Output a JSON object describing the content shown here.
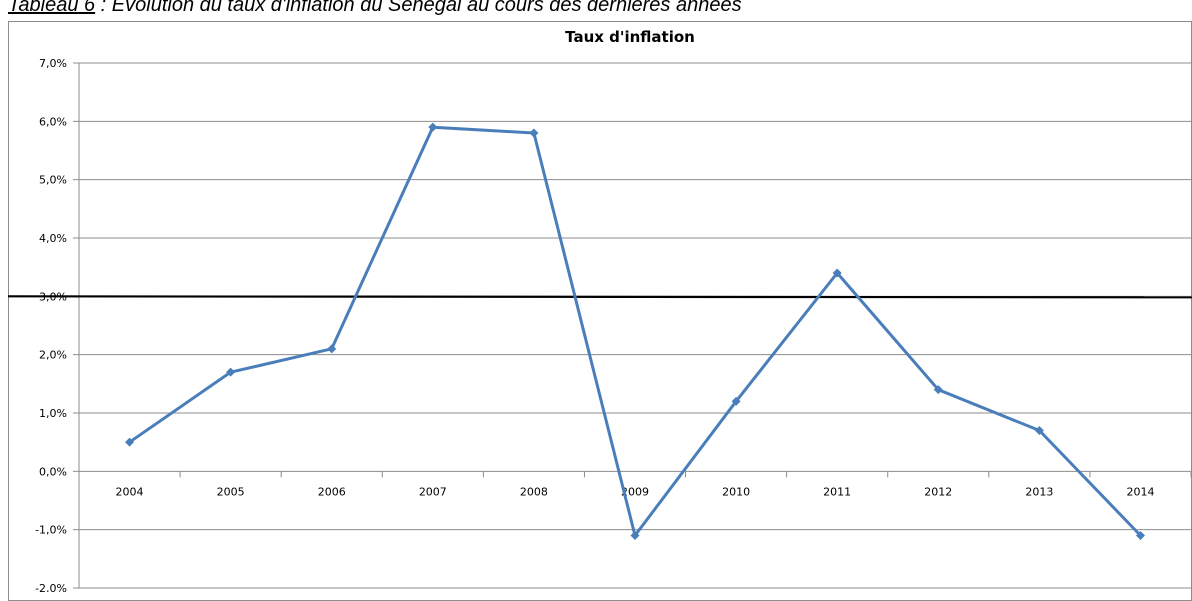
{
  "caption": {
    "lead": "Tableau 6",
    "rest": " : Evolution du taux d'inflation du Sénégal au cours des dernières années"
  },
  "chart_data": {
    "type": "line",
    "title": "Taux d'inflation",
    "xlabel": "",
    "ylabel": "",
    "categories": [
      "2004",
      "2005",
      "2006",
      "2007",
      "2008",
      "2009",
      "2010",
      "2011",
      "2012",
      "2013",
      "2014"
    ],
    "series": [
      {
        "values": [
          0.5,
          1.7,
          2.1,
          5.9,
          5.8,
          -1.1,
          1.2,
          3.4,
          1.4,
          0.7,
          -1.1
        ]
      }
    ],
    "reference_line": {
      "value": 3.0,
      "color": "#000000"
    },
    "ylim": [
      -2.0,
      7.0
    ],
    "y_ticks": [
      -2.0,
      -1.0,
      0.0,
      1.0,
      2.0,
      3.0,
      4.0,
      5.0,
      6.0,
      7.0
    ],
    "y_tick_labels": [
      "-2,0%",
      "-1,0%",
      "0,0%",
      "1,0%",
      "2,0%",
      "3,0%",
      "4,0%",
      "5,0%",
      "6,0%",
      "7,0%"
    ],
    "grid": true,
    "legend": "none",
    "colors": {
      "series": "#4a7ebb",
      "grid": "#8c8c8c",
      "axis": "#8c8c8c"
    }
  }
}
